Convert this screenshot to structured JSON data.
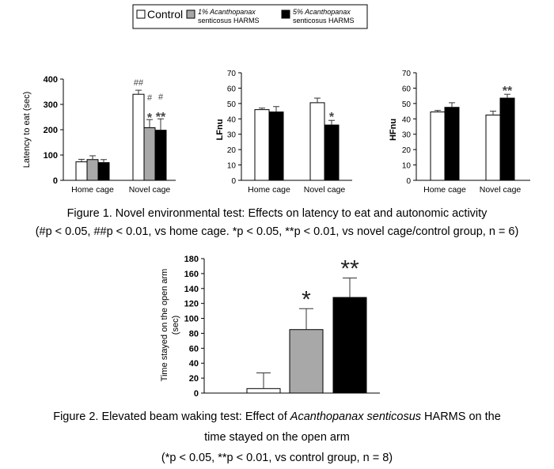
{
  "legend": {
    "items": [
      {
        "text": "Control",
        "fill": "#ffffff"
      },
      {
        "text_line1_italic": "1% Acanthopanax",
        "text_line2": "senticosus HARMS",
        "fill": "#a8a8a8"
      },
      {
        "text_line1_italic": "5% Acanthopanax",
        "text_line2": "senticosus HARMS",
        "fill": "#000000"
      }
    ]
  },
  "colors": {
    "control": "#ffffff",
    "low_dose": "#a8a8a8",
    "high_dose": "#000000",
    "axis": "#000000"
  },
  "chart_data": [
    {
      "type": "bar",
      "panel": "latency",
      "ylabel": "Latency to eat (sec)",
      "ylim": [
        0,
        400
      ],
      "yticks": [
        0,
        100,
        200,
        300,
        400
      ],
      "categories": [
        "Home cage",
        "Novel cage"
      ],
      "series": [
        {
          "name": "Control",
          "values": [
            73,
            340
          ],
          "errors": [
            10,
            16
          ]
        },
        {
          "name": "1% Acanthopanax senticosus HARMS",
          "values": [
            82,
            208
          ],
          "errors": [
            15,
            32
          ]
        },
        {
          "name": "5% Acanthopanax senticosus HARMS",
          "values": [
            70,
            198
          ],
          "errors": [
            12,
            45
          ]
        }
      ],
      "annotations": [
        {
          "series": 0,
          "category": 1,
          "text": "##"
        },
        {
          "series": 1,
          "category": 1,
          "text": "#",
          "line": 1
        },
        {
          "series": 2,
          "category": 1,
          "text": "#",
          "line": 1
        },
        {
          "series": 1,
          "category": 1,
          "text": "*",
          "line": 2
        },
        {
          "series": 2,
          "category": 1,
          "text": "**",
          "line": 2
        }
      ]
    },
    {
      "type": "bar",
      "panel": "lfnu",
      "ylabel": "LFnu",
      "ylim": [
        0,
        70
      ],
      "yticks": [
        0,
        10,
        20,
        30,
        40,
        50,
        60,
        70
      ],
      "categories": [
        "Home cage",
        "Novel cage"
      ],
      "series": [
        {
          "name": "Control",
          "values": [
            46,
            50.5
          ],
          "errors": [
            1,
            3
          ]
        },
        {
          "name": "5% Acanthopanax senticosus HARMS",
          "values": [
            44.5,
            36
          ],
          "errors": [
            3.5,
            3
          ]
        }
      ],
      "annotations": [
        {
          "series": 1,
          "category": 1,
          "text": "*"
        }
      ]
    },
    {
      "type": "bar",
      "panel": "hfnu",
      "ylabel": "HFnu",
      "ylim": [
        0,
        70
      ],
      "yticks": [
        0,
        10,
        20,
        30,
        40,
        50,
        60,
        70
      ],
      "categories": [
        "Home cage",
        "Novel cage"
      ],
      "series": [
        {
          "name": "Control",
          "values": [
            44.5,
            42.5
          ],
          "errors": [
            1,
            2.5
          ]
        },
        {
          "name": "5% Acanthopanax senticosus HARMS",
          "values": [
            47.5,
            53.5
          ],
          "errors": [
            3,
            2.5
          ]
        }
      ],
      "annotations": [
        {
          "series": 1,
          "category": 1,
          "text": "**"
        }
      ]
    },
    {
      "type": "bar",
      "panel": "open-arm",
      "ylabel_line1": "Time stayed on the open arm",
      "ylabel_line2": "(sec)",
      "ylim": [
        0,
        180
      ],
      "yticks": [
        0,
        20,
        40,
        60,
        80,
        100,
        120,
        140,
        160,
        180
      ],
      "categories": [
        "Control",
        "1% Acanthopanax senticosus HARMS",
        "5% Acanthopanax senticosus HARMS"
      ],
      "values": [
        6,
        85,
        128
      ],
      "errors": [
        21,
        28,
        26
      ],
      "annotations": [
        {
          "category": 1,
          "text": "*"
        },
        {
          "category": 2,
          "text": "**"
        }
      ]
    }
  ],
  "captions": {
    "fig1_line1": "Figure 1. Novel environmental test: Effects on latency to eat and autonomic activity",
    "fig1_line2": "(#p < 0.05, ##p < 0.01, vs home cage. *p < 0.05, **p < 0.01, vs novel cage/control group, n = 6)",
    "fig2_prefix": "Figure 2.    Elevated beam waking test: Effect of ",
    "fig2_italic": "Acanthopanax senticosus",
    "fig2_suffix": " HARMS on the",
    "fig2_line2": "time stayed on the open arm",
    "fig2_line3": "(*p < 0.05, **p < 0.01, vs control group, n = 8)"
  }
}
